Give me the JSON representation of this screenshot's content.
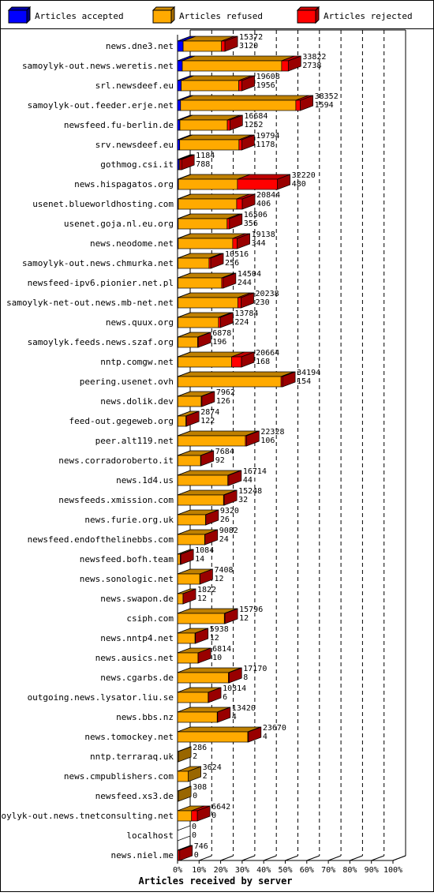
{
  "colors": {
    "accepted": "#0000ff",
    "refused": "#ffaa00",
    "rejected": "#ff0000",
    "background": "#ffffff",
    "grid": "#000000"
  },
  "legend": {
    "accepted": "Articles accepted",
    "refused": "Articles refused",
    "rejected": "Articles rejected"
  },
  "chart_data": {
    "type": "bar",
    "orientation": "horizontal",
    "stacked": true,
    "xlabel": "Articles received by server",
    "xlim": [
      0,
      100
    ],
    "x_unit": "percent",
    "x_ticks": [
      "0%",
      "10%",
      "20%",
      "30%",
      "40%",
      "50%",
      "60%",
      "70%",
      "80%",
      "90%",
      "100%"
    ],
    "grid": true,
    "legend_position": "top",
    "series": [
      {
        "name": "Articles accepted",
        "key": "accepted"
      },
      {
        "name": "Articles refused",
        "key": "refused"
      },
      {
        "name": "Articles rejected",
        "key": "rejected"
      }
    ],
    "rows": [
      {
        "server": "news.dne3.net",
        "acc": 2.6,
        "ref": 17.8,
        "rej": 1.6,
        "total": "15372",
        "second": "3120"
      },
      {
        "server": "samoylyk-out.news.weretis.net",
        "acc": 2.2,
        "ref": 46.1,
        "rej": 3.1,
        "total": "33822",
        "second": "2738"
      },
      {
        "server": "srl.newsdeef.eu",
        "acc": 1.7,
        "ref": 26.7,
        "rej": 1.5,
        "total": "19608",
        "second": "1956"
      },
      {
        "server": "samoylyk-out.feeder.erje.net",
        "acc": 1.4,
        "ref": 53.5,
        "rej": 2.1,
        "total": "38352",
        "second": "1594"
      },
      {
        "server": "newsfeed.fu-berlin.de",
        "acc": 1.1,
        "ref": 22.0,
        "rej": 1.2,
        "total": "16684",
        "second": "1252"
      },
      {
        "server": "srv.newsdeef.eu",
        "acc": 1.0,
        "ref": 27.5,
        "rej": 1.3,
        "total": "19794",
        "second": "1178"
      },
      {
        "server": "gothmog.csi.it",
        "acc": 0.7,
        "ref": 0.4,
        "rej": 0.8,
        "total": "1184",
        "second": "788"
      },
      {
        "server": "news.hispagatos.org",
        "acc": 0.4,
        "ref": 27.4,
        "rej": 18.6,
        "total": "32220",
        "second": "480"
      },
      {
        "server": "usenet.blueworldhosting.com",
        "acc": 0.35,
        "ref": 27.1,
        "rej": 2.6,
        "total": "20844",
        "second": "406"
      },
      {
        "server": "usenet.goja.nl.eu.org",
        "acc": 0.3,
        "ref": 22.7,
        "rej": 1.1,
        "total": "16506",
        "second": "356"
      },
      {
        "server": "news.neodome.net",
        "acc": 0.3,
        "ref": 25.3,
        "rej": 2.1,
        "total": "19138",
        "second": "344"
      },
      {
        "server": "samoylyk-out.news.chmurka.net",
        "acc": 0.2,
        "ref": 14.4,
        "rej": 0.8,
        "total": "10516",
        "second": "256"
      },
      {
        "server": "newsfeed-ipv6.pionier.net.pl",
        "acc": 0.2,
        "ref": 20.3,
        "rej": 0.7,
        "total": "14504",
        "second": "244"
      },
      {
        "server": "samoylyk-net-out.news.mb-net.net",
        "acc": 0.2,
        "ref": 27.8,
        "rej": 1.5,
        "total": "20238",
        "second": "230"
      },
      {
        "server": "news.quux.org",
        "acc": 0.2,
        "ref": 18.8,
        "rej": 0.9,
        "total": "13784",
        "second": "224"
      },
      {
        "server": "samoylyk.feeds.news.szaf.org",
        "acc": 0.2,
        "ref": 9.1,
        "rej": 0.3,
        "total": "6878",
        "second": "196"
      },
      {
        "server": "nntp.comgw.net",
        "acc": 0.2,
        "ref": 24.9,
        "rej": 4.6,
        "total": "20664",
        "second": "168"
      },
      {
        "server": "peering.usenet.ovh",
        "acc": 0.15,
        "ref": 47.9,
        "rej": 0.7,
        "total": "34194",
        "second": "154"
      },
      {
        "server": "news.dolik.dev",
        "acc": 0.1,
        "ref": 10.9,
        "rej": 0.3,
        "total": "7962",
        "second": "126"
      },
      {
        "server": "feed-out.gegeweb.org",
        "acc": 0.1,
        "ref": 3.8,
        "rej": 0.2,
        "total": "2874",
        "second": "122"
      },
      {
        "server": "peer.alt119.net",
        "acc": 0.1,
        "ref": 31.4,
        "rej": 0.5,
        "total": "22328",
        "second": "106"
      },
      {
        "server": "news.corradoroberto.it",
        "acc": 0.1,
        "ref": 10.6,
        "rej": 0.2,
        "total": "7684",
        "second": "92"
      },
      {
        "server": "news.1d4.us",
        "acc": 0.05,
        "ref": 23.3,
        "rej": 0.4,
        "total": "16714",
        "second": "44"
      },
      {
        "server": "newsfeeds.xmission.com",
        "acc": 0.05,
        "ref": 21.3,
        "rej": 0.3,
        "total": "15248",
        "second": "32"
      },
      {
        "server": "news.furie.org.uk",
        "acc": 0.03,
        "ref": 13.0,
        "rej": 0.1,
        "total": "9320",
        "second": "26"
      },
      {
        "server": "newsfeed.endofthelinebbs.com",
        "acc": 0.03,
        "ref": 12.6,
        "rej": 0.1,
        "total": "9082",
        "second": "24"
      },
      {
        "server": "newsfeed.bofh.team",
        "acc": 0.02,
        "ref": 1.2,
        "rej": 0.3,
        "total": "1084",
        "second": "14"
      },
      {
        "server": "news.sonologic.net",
        "acc": 0.02,
        "ref": 10.3,
        "rej": 0.1,
        "total": "7408",
        "second": "12"
      },
      {
        "server": "news.swapon.de",
        "acc": 0.02,
        "ref": 2.5,
        "rej": 0.05,
        "total": "1822",
        "second": "12"
      },
      {
        "server": "csiph.com",
        "acc": 0.02,
        "ref": 21.7,
        "rej": 0.3,
        "total": "15796",
        "second": "12"
      },
      {
        "server": "news.nntp4.net",
        "acc": 0.02,
        "ref": 8.1,
        "rej": 0.2,
        "total": "5938",
        "second": "12"
      },
      {
        "server": "news.ausics.net",
        "acc": 0.01,
        "ref": 9.5,
        "rej": 0.05,
        "total": "6814",
        "second": "10"
      },
      {
        "server": "news.cgarbs.de",
        "acc": 0.01,
        "ref": 23.6,
        "rej": 0.3,
        "total": "17170",
        "second": "8"
      },
      {
        "server": "outgoing.news.lysator.liu.se",
        "acc": 0.01,
        "ref": 14.2,
        "rej": 0.1,
        "total": "10314",
        "second": "6"
      },
      {
        "server": "news.bbs.nz",
        "acc": 0.01,
        "ref": 18.4,
        "rej": 0.2,
        "total": "13420",
        "second": "4"
      },
      {
        "server": "news.tomockey.net",
        "acc": 0.01,
        "ref": 32.6,
        "rej": 0.3,
        "total": "23670",
        "second": "4"
      },
      {
        "server": "nntp.terraraq.uk",
        "acc": 0.0,
        "ref": 0.4,
        "rej": 0.0,
        "total": "286",
        "second": "2"
      },
      {
        "server": "news.cmpublishers.com",
        "acc": 0.0,
        "ref": 5.0,
        "rej": 0.0,
        "total": "3624",
        "second": "2"
      },
      {
        "server": "newsfeed.xs3.de",
        "acc": 0.0,
        "ref": 0.4,
        "rej": 0.0,
        "total": "308",
        "second": "0"
      },
      {
        "server": "samoylyk-out.news.tnetconsulting.net",
        "acc": 0.0,
        "ref": 6.5,
        "rej": 2.7,
        "total": "6642",
        "second": "0"
      },
      {
        "server": "localhost",
        "acc": 0.0,
        "ref": 0.0,
        "rej": 0.0,
        "total": "0",
        "second": "0"
      },
      {
        "server": "news.niel.me",
        "acc": 0.0,
        "ref": 0.2,
        "rej": 0.8,
        "total": "746",
        "second": "0"
      }
    ]
  }
}
